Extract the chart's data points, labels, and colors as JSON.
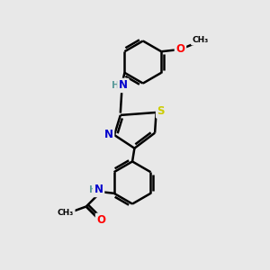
{
  "background_color": "#e8e8e8",
  "atom_colors": {
    "C": "#000000",
    "N": "#0000cc",
    "O": "#ff0000",
    "S": "#cccc00",
    "H": "#5a9a9a"
  },
  "bond_color": "#000000",
  "bond_width": 1.8,
  "font_size_atom": 8.5,
  "xlim": [
    0,
    10
  ],
  "ylim": [
    0,
    10
  ]
}
